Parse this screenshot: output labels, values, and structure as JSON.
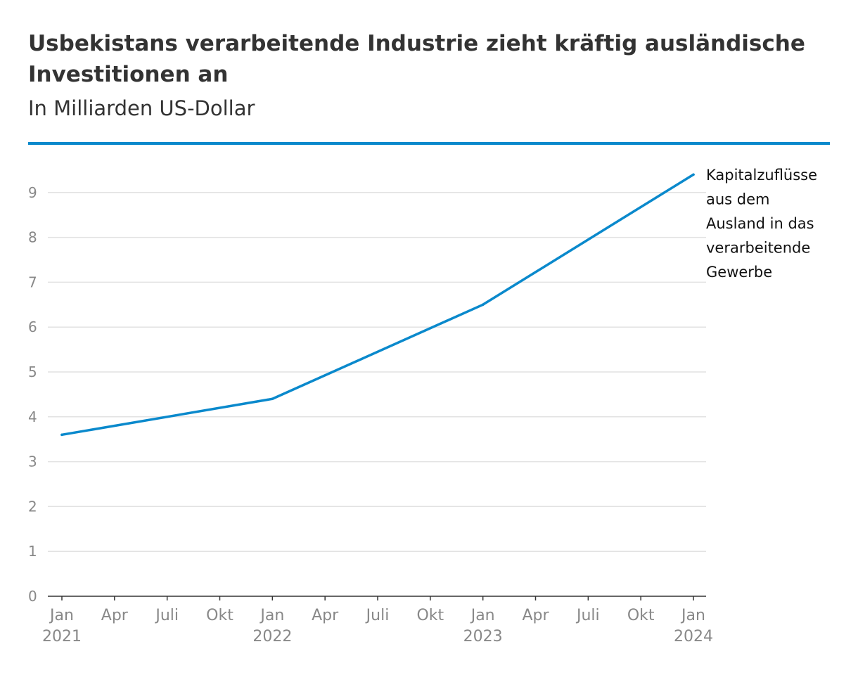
{
  "chart_data": {
    "type": "line",
    "title": "Usbekistans verarbeitende Industrie zieht kräftig ausländische Investitionen an",
    "subtitle": "In Milliarden US-Dollar",
    "xlabel": "",
    "ylabel": "",
    "ylim": [
      0,
      9
    ],
    "yticks": [
      "0",
      "1",
      "2",
      "3",
      "4",
      "5",
      "6",
      "7",
      "8",
      "9"
    ],
    "xlim": [
      "Jan 2021",
      "Jan 2024"
    ],
    "xticks": [
      {
        "month": "Jan",
        "year": "2021"
      },
      {
        "month": "Apr",
        "year": ""
      },
      {
        "month": "Juli",
        "year": ""
      },
      {
        "month": "Okt",
        "year": ""
      },
      {
        "month": "Jan",
        "year": "2022"
      },
      {
        "month": "Apr",
        "year": ""
      },
      {
        "month": "Juli",
        "year": ""
      },
      {
        "month": "Okt",
        "year": ""
      },
      {
        "month": "Jan",
        "year": "2023"
      },
      {
        "month": "Apr",
        "year": ""
      },
      {
        "month": "Juli",
        "year": ""
      },
      {
        "month": "Okt",
        "year": ""
      },
      {
        "month": "Jan",
        "year": "2024"
      }
    ],
    "grid": true,
    "series": [
      {
        "name": "Kapitalzuflüsse aus dem Ausland in das verarbeitende Gewerbe",
        "label_lines": [
          "Kapitalzuflüsse",
          "aus dem",
          "Ausland in das",
          "verarbeitende",
          "Gewerbe"
        ],
        "color": "#0a89cc",
        "x": [
          "Jan 2021",
          "Jan 2022",
          "Jan 2023",
          "Jan 2024"
        ],
        "values": [
          3.6,
          4.4,
          6.5,
          9.4
        ]
      }
    ]
  }
}
